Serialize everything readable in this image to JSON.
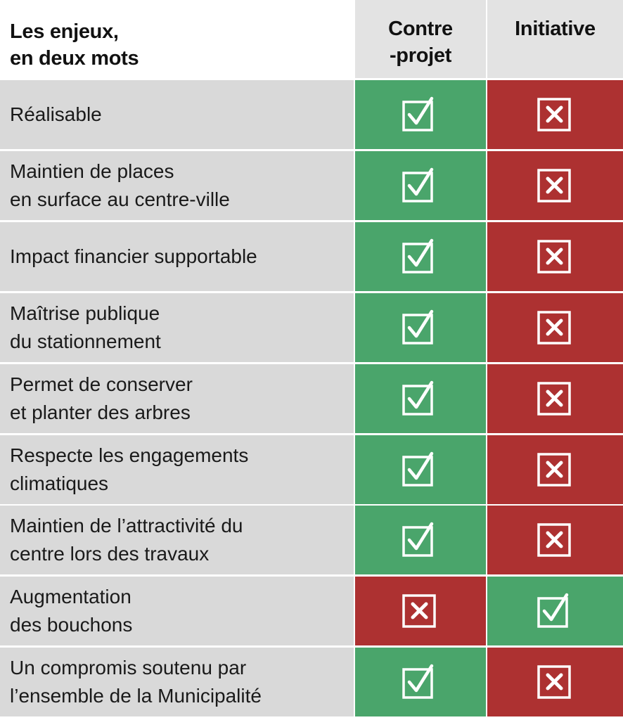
{
  "colors": {
    "yes": "#4aa56b",
    "no": "#ad3131",
    "label_bg": "#d9d9d9",
    "header_bg": "#e3e3e3"
  },
  "chart_data": {
    "type": "table",
    "title": "Les enjeux,\nen deux mots",
    "columns": [
      "Contre\n-projet",
      "Initiative"
    ],
    "rows": [
      {
        "label": "Réalisable",
        "values": [
          "yes",
          "no"
        ]
      },
      {
        "label": "Maintien de places\nen surface au centre-ville",
        "values": [
          "yes",
          "no"
        ]
      },
      {
        "label": "Impact financier supportable",
        "values": [
          "yes",
          "no"
        ]
      },
      {
        "label": "Maîtrise publique\ndu stationnement",
        "values": [
          "yes",
          "no"
        ]
      },
      {
        "label": "Permet de conserver\net planter des arbres",
        "values": [
          "yes",
          "no"
        ]
      },
      {
        "label": "Respecte les engagements\nclimatiques",
        "values": [
          "yes",
          "no"
        ]
      },
      {
        "label": "Maintien de l’attractivité du\ncentre lors des travaux",
        "values": [
          "yes",
          "no"
        ]
      },
      {
        "label": "Augmentation\ndes bouchons",
        "values": [
          "no",
          "yes"
        ]
      },
      {
        "label": "Un compromis soutenu par\nl’ensemble de la Municipalité",
        "values": [
          "yes",
          "no"
        ]
      }
    ]
  }
}
